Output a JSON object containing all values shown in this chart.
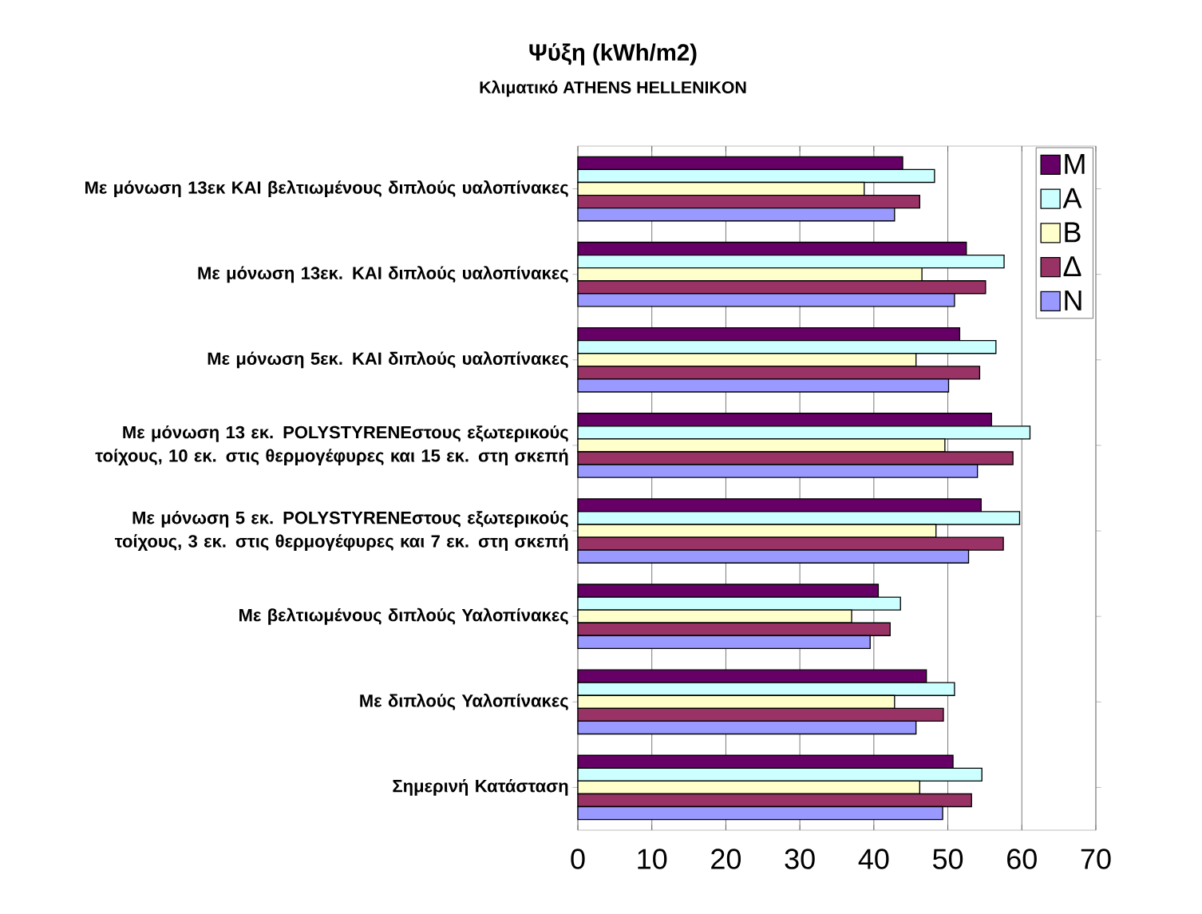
{
  "chart_data": {
    "type": "bar",
    "orientation": "horizontal",
    "title": "Ψύξη (kWh/m2)",
    "subtitle": "Κλιματικό ATHENS HELLENIKON",
    "categories": [
      "Με μόνωση 13εκ   ΚΑΙ βελτιωμένους διπλούς υαλοπίνακες",
      "Με μόνωση 13εκ.  ΚΑΙ διπλούς υαλοπίνακες",
      "Με μόνωση 5εκ.  ΚΑΙ διπλούς υαλοπίνακες",
      "Με μόνωση 13 εκ. POLYSTYRENEστους εξωτερικούς τοίχους, 10  εκ. στις θερμογέφυρες και 15 εκ. στη σκεπή",
      "Με μόνωση 5 εκ. POLYSTYRENEστους εξωτερικούς τοίχους, 3 εκ. στις θερμογέφυρες και 7 εκ. στη σκεπή",
      "Με βελτιωμένους διπλούς Υαλοπίνακες",
      "Με διπλούς Υαλοπίνακες",
      "Σημερινή Κατάσταση"
    ],
    "series": [
      {
        "name": "M",
        "color": "#660066",
        "values": [
          43.9,
          52.5,
          51.6,
          55.9,
          54.5,
          40.6,
          47.1,
          50.7
        ]
      },
      {
        "name": "A",
        "color": "#ccffff",
        "values": [
          48.2,
          57.6,
          56.5,
          61.1,
          59.7,
          43.6,
          50.9,
          54.6
        ]
      },
      {
        "name": "B",
        "color": "#ffffcc",
        "values": [
          38.7,
          46.5,
          45.7,
          49.6,
          48.4,
          37.0,
          42.8,
          46.2
        ]
      },
      {
        "name": "Δ",
        "color": "#993366",
        "values": [
          46.2,
          55.1,
          54.3,
          58.8,
          57.5,
          42.2,
          49.4,
          53.2
        ]
      },
      {
        "name": "N",
        "color": "#9999ff",
        "values": [
          42.8,
          50.9,
          50.1,
          54.0,
          52.8,
          39.5,
          45.7,
          49.3
        ]
      }
    ],
    "xlim": [
      0,
      70
    ],
    "xticks": [
      0,
      10,
      20,
      30,
      40,
      50,
      60,
      70
    ],
    "grid": "x",
    "legend": "top right"
  }
}
